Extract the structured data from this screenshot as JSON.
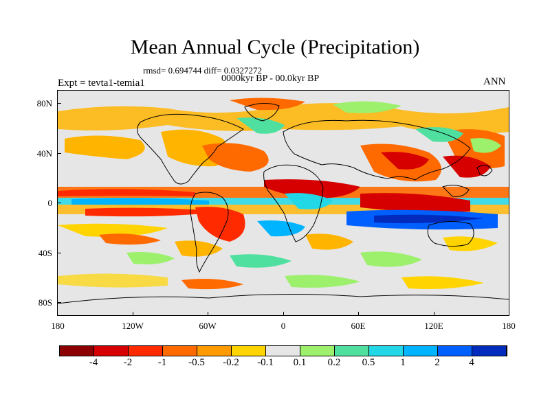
{
  "title": "Mean Annual Cycle (Precipitation)",
  "stats": "rmsd= 0.694744 diff= 0.0327272",
  "period": "0000kyr BP - 00.0kyr BP",
  "expt": "Expt = tevta1-temia1",
  "season": "ANN",
  "y_axis": [
    "80N",
    "40N",
    "0",
    "40S",
    "80S"
  ],
  "x_axis": [
    "180",
    "120W",
    "60W",
    "0",
    "60E",
    "120E",
    "180"
  ],
  "colorbar": {
    "colors": [
      "#8b0000",
      "#d60000",
      "#ff2a00",
      "#ff6a00",
      "#ff9a00",
      "#ffd400",
      "#e6e6e6",
      "#9cf06c",
      "#4fe0a0",
      "#23d8e6",
      "#00b4ff",
      "#0060ff",
      "#002bbd"
    ],
    "labels": [
      "-4",
      "-2",
      "-1",
      "-0.5",
      "-0.2",
      "-0.1",
      "0.1",
      "0.2",
      "0.5",
      "1",
      "2",
      "4"
    ]
  }
}
